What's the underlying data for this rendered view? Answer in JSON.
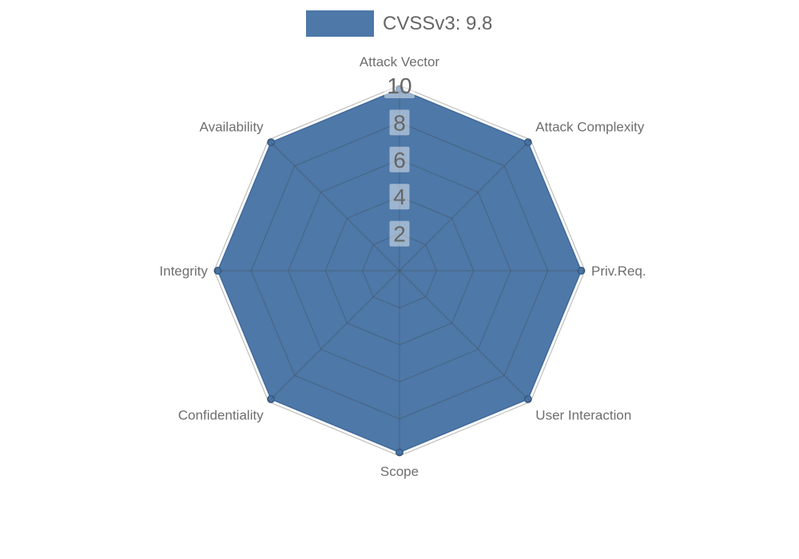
{
  "page": {
    "background_color": "#ffffff"
  },
  "chart_data": {
    "type": "radar",
    "title": "",
    "legend": {
      "label": "CVSSv3: 9.8",
      "color": "#4d78a8",
      "position": "top"
    },
    "axes": [
      "Attack Vector",
      "Attack Complexity",
      "Priv.Req.",
      "User Interaction",
      "Scope",
      "Confidentiality",
      "Integrity",
      "Availability"
    ],
    "series": [
      {
        "name": "CVSSv3: 9.8",
        "color": "#4d78a8",
        "values": [
          9.8,
          9.8,
          9.8,
          9.8,
          9.8,
          9.8,
          9.8,
          9.8
        ]
      }
    ],
    "scale": {
      "min": 0,
      "max": 10,
      "tick_interval": 2,
      "ticks": [
        2,
        4,
        6,
        8,
        10
      ]
    },
    "grid": {
      "shape": "polygon",
      "rings": 5,
      "line_color": "rgba(68,68,68,0.40)"
    },
    "style": {
      "axis_label_color": "#6e6e6e",
      "tick_label_color": "#666666",
      "tick_label_bg": "rgba(255,255,255,0.45)",
      "series_border_color": "#41699b",
      "marker_border_color": "#38608f",
      "legend_text_color": "#666666"
    }
  }
}
